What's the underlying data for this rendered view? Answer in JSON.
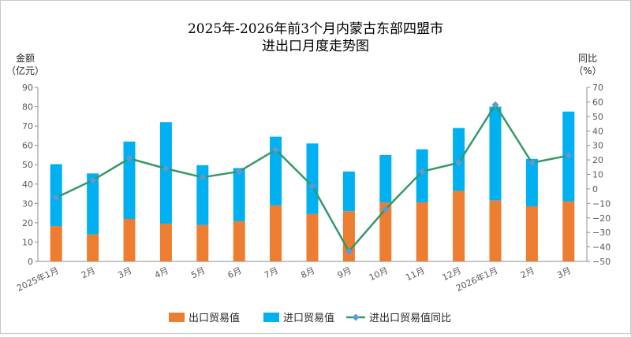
{
  "chart_data": {
    "type": "bar",
    "title_lines": [
      "2025年-2026年前3个月内蒙古东部四盟市",
      "进出口月度走势图"
    ],
    "ylabel_left_lines": [
      "金额",
      "（亿元）"
    ],
    "ylabel_right_lines": [
      "同比",
      "（%）"
    ],
    "ylim_left": [
      0,
      90
    ],
    "ylim_right": [
      -50,
      70
    ],
    "yticks_left": [
      "0",
      "10",
      "20",
      "30",
      "40",
      "50",
      "60",
      "70",
      "80",
      "90"
    ],
    "yticks_right": [
      "−50",
      "−40",
      "−30",
      "−20",
      "−10",
      "0",
      "10",
      "20",
      "30",
      "40",
      "50",
      "60",
      "70"
    ],
    "categories": [
      "2025年1月",
      "2月",
      "3月",
      "4月",
      "5月",
      "6月",
      "7月",
      "8月",
      "9月",
      "10月",
      "11月",
      "12月",
      "2026年1月",
      "2月",
      "3月"
    ],
    "series": [
      {
        "name": "出口贸易值",
        "kind": "bar",
        "color": "#ed7d31",
        "values": [
          18.3,
          14,
          22,
          19.5,
          18.8,
          20.8,
          29,
          24.5,
          26,
          30.5,
          30.5,
          36.5,
          31.5,
          28.5,
          31
        ]
      },
      {
        "name": "进口贸易值",
        "kind": "bar",
        "color": "#00b0f0",
        "values": [
          32,
          31.5,
          40,
          52.5,
          31,
          27.5,
          35.5,
          36.5,
          20.5,
          24.5,
          27.5,
          32.5,
          48.5,
          24.5,
          46.5
        ]
      },
      {
        "name": "进出口贸易值同比",
        "kind": "line",
        "axis": "right",
        "color": "#339966",
        "marker_color": "#5b9bd5",
        "values": [
          -6,
          6,
          21,
          14,
          8,
          12,
          27,
          2,
          -43,
          -14,
          12,
          18,
          58,
          18,
          23
        ]
      }
    ],
    "legend_position": "bottom",
    "grid": false
  }
}
